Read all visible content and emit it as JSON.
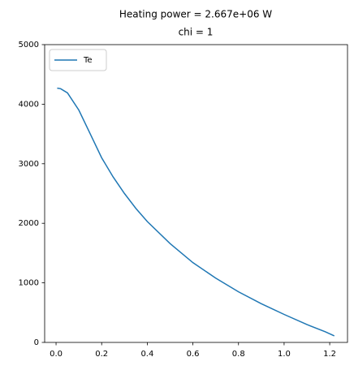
{
  "chart_data": {
    "type": "line",
    "title": "Heating power = 2.667e+06 W",
    "subtitle": "chi = 1",
    "x": [
      0.005,
      0.02,
      0.05,
      0.1,
      0.15,
      0.2,
      0.25,
      0.3,
      0.35,
      0.4,
      0.5,
      0.6,
      0.7,
      0.8,
      0.9,
      1.0,
      1.1,
      1.18,
      1.22
    ],
    "series": [
      {
        "name": "Te",
        "color": "#1f77b4",
        "values": [
          4270,
          4260,
          4190,
          3900,
          3500,
          3100,
          2780,
          2500,
          2250,
          2030,
          1660,
          1340,
          1080,
          850,
          650,
          470,
          300,
          180,
          110
        ]
      }
    ],
    "xlim": [
      -0.05,
      1.278
    ],
    "ylim": [
      0,
      5000
    ],
    "xticks": [
      {
        "value": 0,
        "label": "0.0"
      },
      0.2,
      0.4,
      0.6,
      0.8,
      {
        "value": 1,
        "label": "1.0"
      },
      1.2
    ],
    "yticks": [
      0,
      1000,
      2000,
      3000,
      4000,
      5000
    ],
    "grid": false,
    "legend": "upper-left"
  }
}
